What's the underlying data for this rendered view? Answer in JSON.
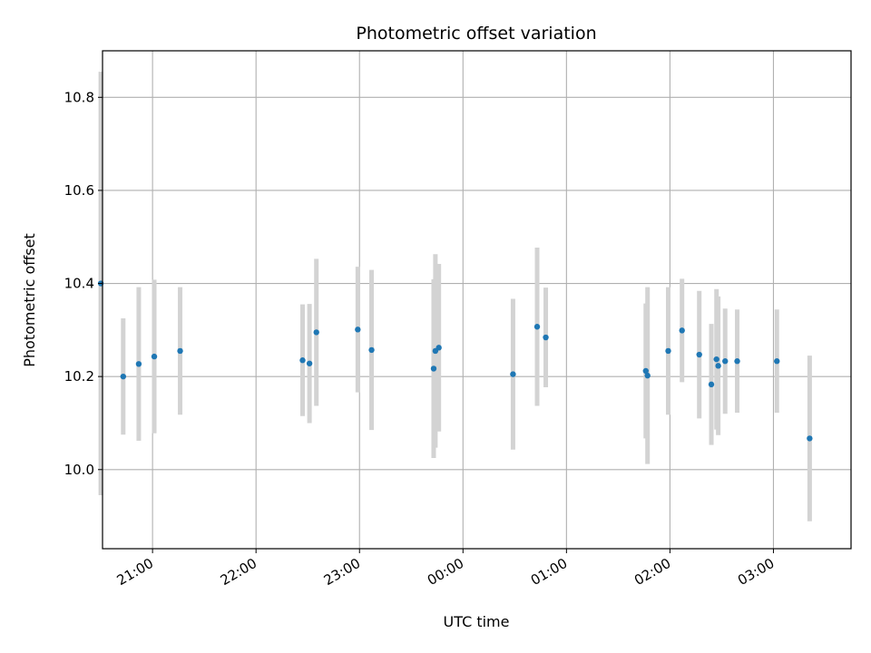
{
  "chart_data": {
    "type": "scatter",
    "title": "Photometric offset variation",
    "xlabel": "UTC time",
    "ylabel": "Photometric offset",
    "x_axis_kind": "time",
    "xlim": [
      "20:31",
      "03:45"
    ],
    "ylim": [
      9.83,
      10.9
    ],
    "x_ticks": [
      "21:00",
      "22:00",
      "23:00",
      "00:00",
      "01:00",
      "02:00",
      "03:00"
    ],
    "y_ticks": [
      10.0,
      10.2,
      10.4,
      10.6,
      10.8
    ],
    "y_tick_labels": [
      "10.0",
      "10.2",
      "10.4",
      "10.6",
      "10.8"
    ],
    "grid": true,
    "legend": "none",
    "colors": {
      "points": "#1f77b4",
      "error_bars": "#d3d3d3",
      "grid": "#b0b0b0",
      "axes": "#000000"
    },
    "points": [
      {
        "x": "20:30",
        "y": 10.4,
        "err": 0.455
      },
      {
        "x": "20:43",
        "y": 10.2,
        "err": 0.125
      },
      {
        "x": "20:52",
        "y": 10.227,
        "err": 0.165
      },
      {
        "x": "21:01",
        "y": 10.243,
        "err": 0.165
      },
      {
        "x": "21:16",
        "y": 10.255,
        "err": 0.137
      },
      {
        "x": "22:27",
        "y": 10.235,
        "err": 0.12
      },
      {
        "x": "22:31",
        "y": 10.228,
        "err": 0.128
      },
      {
        "x": "22:35",
        "y": 10.295,
        "err": 0.158
      },
      {
        "x": "22:59",
        "y": 10.301,
        "err": 0.135
      },
      {
        "x": "23:07",
        "y": 10.257,
        "err": 0.172
      },
      {
        "x": "23:43",
        "y": 10.217,
        "err": 0.192
      },
      {
        "x": "23:44",
        "y": 10.255,
        "err": 0.208
      },
      {
        "x": "23:46",
        "y": 10.262,
        "err": 0.18
      },
      {
        "x": "00:29",
        "y": 10.205,
        "err": 0.162
      },
      {
        "x": "00:43",
        "y": 10.307,
        "err": 0.17
      },
      {
        "x": "00:48",
        "y": 10.284,
        "err": 0.107
      },
      {
        "x": "01:46",
        "y": 10.212,
        "err": 0.145
      },
      {
        "x": "01:47",
        "y": 10.202,
        "err": 0.19
      },
      {
        "x": "01:59",
        "y": 10.255,
        "err": 0.137
      },
      {
        "x": "02:07",
        "y": 10.299,
        "err": 0.111
      },
      {
        "x": "02:17",
        "y": 10.247,
        "err": 0.137
      },
      {
        "x": "02:24",
        "y": 10.183,
        "err": 0.13
      },
      {
        "x": "02:27",
        "y": 10.237,
        "err": 0.151
      },
      {
        "x": "02:28",
        "y": 10.223,
        "err": 0.149
      },
      {
        "x": "02:32",
        "y": 10.233,
        "err": 0.113
      },
      {
        "x": "02:39",
        "y": 10.233,
        "err": 0.111
      },
      {
        "x": "03:02",
        "y": 10.233,
        "err": 0.111
      },
      {
        "x": "03:21",
        "y": 10.067,
        "err": 0.178
      }
    ]
  }
}
